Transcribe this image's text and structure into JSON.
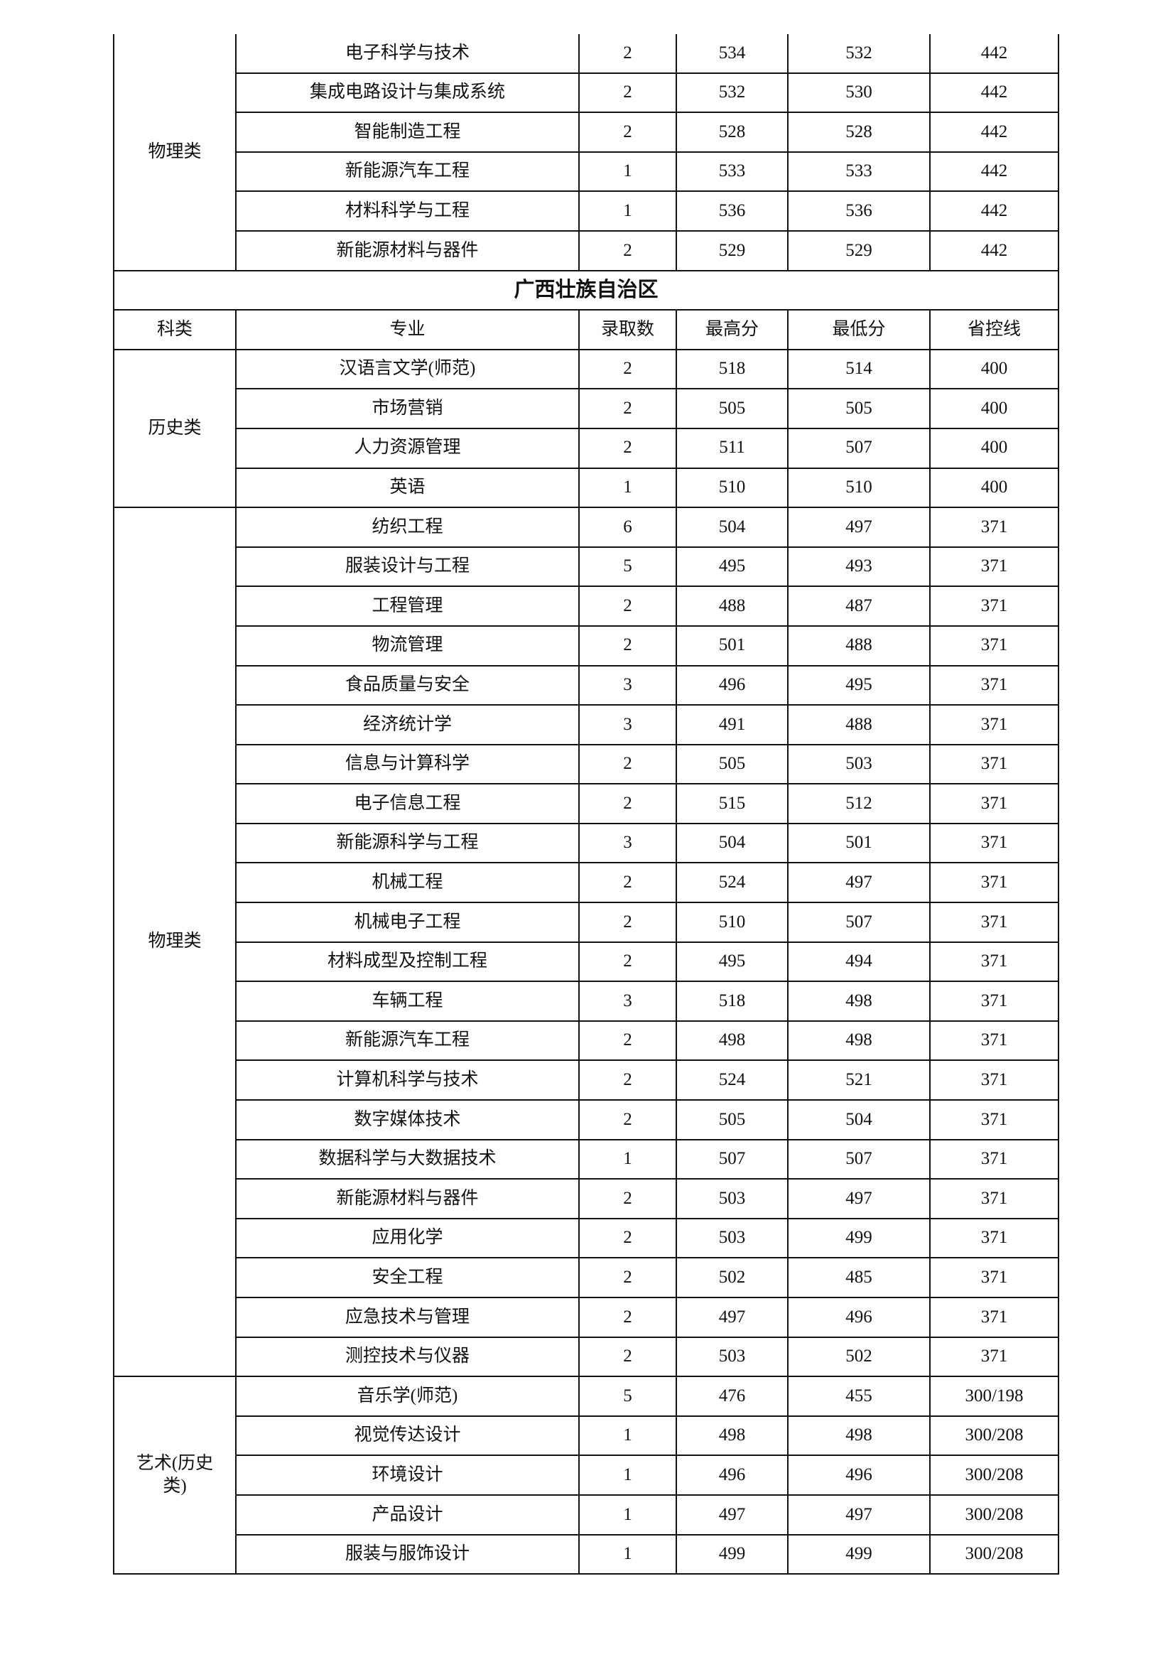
{
  "sections": [
    {
      "groups": [
        {
          "category": "物理类",
          "rows": [
            [
              "电子科学与技术",
              "2",
              "534",
              "532",
              "442"
            ],
            [
              "集成电路设计与集成系统",
              "2",
              "532",
              "530",
              "442"
            ],
            [
              "智能制造工程",
              "2",
              "528",
              "528",
              "442"
            ],
            [
              "新能源汽车工程",
              "1",
              "533",
              "533",
              "442"
            ],
            [
              "材料科学与工程",
              "1",
              "536",
              "536",
              "442"
            ],
            [
              "新能源材料与器件",
              "2",
              "529",
              "529",
              "442"
            ]
          ]
        }
      ]
    },
    {
      "title": "广西壮族自治区",
      "headers": [
        "科类",
        "专业",
        "录取数",
        "最高分",
        "最低分",
        "省控线"
      ],
      "groups": [
        {
          "category": "历史类",
          "rows": [
            [
              "汉语言文学(师范)",
              "2",
              "518",
              "514",
              "400"
            ],
            [
              "市场营销",
              "2",
              "505",
              "505",
              "400"
            ],
            [
              "人力资源管理",
              "2",
              "511",
              "507",
              "400"
            ],
            [
              "英语",
              "1",
              "510",
              "510",
              "400"
            ]
          ]
        },
        {
          "category": "物理类",
          "rows": [
            [
              "纺织工程",
              "6",
              "504",
              "497",
              "371"
            ],
            [
              "服装设计与工程",
              "5",
              "495",
              "493",
              "371"
            ],
            [
              "工程管理",
              "2",
              "488",
              "487",
              "371"
            ],
            [
              "物流管理",
              "2",
              "501",
              "488",
              "371"
            ],
            [
              "食品质量与安全",
              "3",
              "496",
              "495",
              "371"
            ],
            [
              "经济统计学",
              "3",
              "491",
              "488",
              "371"
            ],
            [
              "信息与计算科学",
              "2",
              "505",
              "503",
              "371"
            ],
            [
              "电子信息工程",
              "2",
              "515",
              "512",
              "371"
            ],
            [
              "新能源科学与工程",
              "3",
              "504",
              "501",
              "371"
            ],
            [
              "机械工程",
              "2",
              "524",
              "497",
              "371"
            ],
            [
              "机械电子工程",
              "2",
              "510",
              "507",
              "371"
            ],
            [
              "材料成型及控制工程",
              "2",
              "495",
              "494",
              "371"
            ],
            [
              "车辆工程",
              "3",
              "518",
              "498",
              "371"
            ],
            [
              "新能源汽车工程",
              "2",
              "498",
              "498",
              "371"
            ],
            [
              "计算机科学与技术",
              "2",
              "524",
              "521",
              "371"
            ],
            [
              "数字媒体技术",
              "2",
              "505",
              "504",
              "371"
            ],
            [
              "数据科学与大数据技术",
              "1",
              "507",
              "507",
              "371"
            ],
            [
              "新能源材料与器件",
              "2",
              "503",
              "497",
              "371"
            ],
            [
              "应用化学",
              "2",
              "503",
              "499",
              "371"
            ],
            [
              "安全工程",
              "2",
              "502",
              "485",
              "371"
            ],
            [
              "应急技术与管理",
              "2",
              "497",
              "496",
              "371"
            ],
            [
              "测控技术与仪器",
              "2",
              "503",
              "502",
              "371"
            ]
          ]
        },
        {
          "category": "艺术(历史类)",
          "rows": [
            [
              "音乐学(师范)",
              "5",
              "476",
              "455",
              "300/198"
            ],
            [
              "视觉传达设计",
              "1",
              "498",
              "498",
              "300/208"
            ],
            [
              "环境设计",
              "1",
              "496",
              "496",
              "300/208"
            ],
            [
              "产品设计",
              "1",
              "497",
              "497",
              "300/208"
            ],
            [
              "服装与服饰设计",
              "1",
              "499",
              "499",
              "300/208"
            ]
          ]
        }
      ]
    }
  ]
}
